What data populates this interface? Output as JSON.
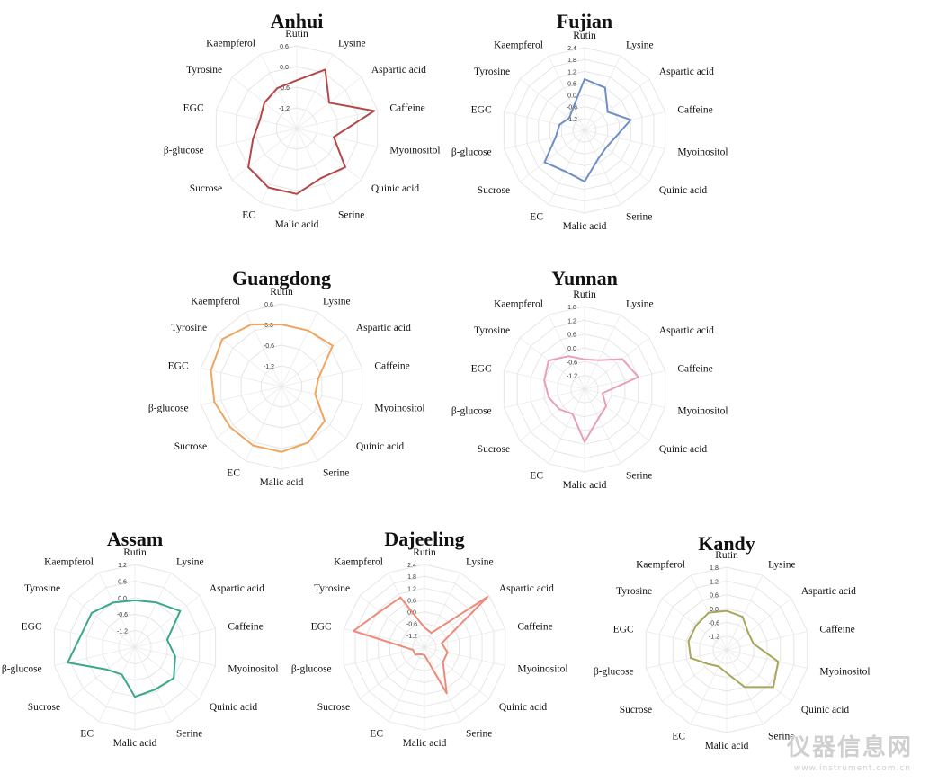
{
  "figure": {
    "watermark": {
      "text": "仪器信息网",
      "url": "www.instrument.com.cn"
    }
  },
  "chart_data": [
    {
      "type": "radar",
      "title": "Anhui",
      "axes": [
        "Rutin",
        "Lysine",
        "Aspartic acid",
        "Caffeine",
        "Myoinositol",
        "Quinic acid",
        "Serine",
        "Malic acid",
        "EC",
        "Sucrose",
        "β-glucose",
        "EGC",
        "Tyrosine",
        "Kaempferol"
      ],
      "tick_labels": [
        "0.6",
        "0.0",
        "-0.6",
        "-1.2"
      ],
      "tick_values": [
        0.6,
        0.0,
        -0.6,
        -1.2
      ],
      "rmin": -1.8,
      "rmax": 0.6,
      "color": "#b5474a",
      "series": [
        {
          "values": [
            -0.4,
            0.1,
            -0.6,
            0.5,
            -0.7,
            0.0,
            -0.2,
            0.1,
            0.1,
            0.0,
            -0.5,
            -0.7,
            -0.6,
            -0.5
          ]
        }
      ]
    },
    {
      "type": "radar",
      "title": "Fujian",
      "axes": [
        "Rutin",
        "Lysine",
        "Aspartic acid",
        "Caffeine",
        "Myoinositol",
        "Quinic acid",
        "Serine",
        "Malic acid",
        "EC",
        "Sucrose",
        "β-glucose",
        "EGC",
        "Tyrosine",
        "Kaempferol"
      ],
      "tick_labels": [
        "2.4",
        "1.8",
        "1.2",
        "0.6",
        "0.0",
        "-0.6",
        "-1.2"
      ],
      "tick_values": [
        2.4,
        1.8,
        1.2,
        0.6,
        0.0,
        -0.6,
        -1.2
      ],
      "rmin": -1.8,
      "rmax": 2.4,
      "color": "#6e8fc5",
      "series": [
        {
          "values": [
            0.8,
            0.6,
            -0.3,
            0.6,
            -0.2,
            -0.4,
            -0.2,
            0.8,
            0.5,
            0.8,
            -0.3,
            -0.5,
            -0.8,
            -0.5
          ]
        }
      ]
    },
    {
      "type": "radar",
      "title": "Guangdong",
      "axes": [
        "Rutin",
        "Lysine",
        "Aspartic acid",
        "Caffeine",
        "Myoinositol",
        "Quinic acid",
        "Serine",
        "Malic acid",
        "EC",
        "Sucrose",
        "β-glucose",
        "EGC",
        "Tyrosine",
        "Kaempferol"
      ],
      "tick_labels": [
        "0.6",
        "0.0",
        "-0.6",
        "-1.2"
      ],
      "tick_values": [
        0.6,
        0.0,
        -0.6,
        -1.2
      ],
      "rmin": -1.8,
      "rmax": 0.6,
      "color": "#f0a55e",
      "series": [
        {
          "values": [
            0.0,
            0.0,
            0.1,
            -0.7,
            -0.8,
            -0.2,
            0.0,
            0.1,
            0.1,
            0.1,
            0.2,
            0.3,
            0.4,
            0.2
          ]
        }
      ]
    },
    {
      "type": "radar",
      "title": "Yunnan",
      "axes": [
        "Rutin",
        "Lysine",
        "Aspartic acid",
        "Caffeine",
        "Myoinositol",
        "Quinic acid",
        "Serine",
        "Malic acid",
        "EC",
        "Sucrose",
        "β-glucose",
        "EGC",
        "Tyrosine",
        "Kaempferol"
      ],
      "tick_labels": [
        "1.8",
        "1.2",
        "0.6",
        "0.0",
        "-0.6",
        "-1.2"
      ],
      "tick_values": [
        1.8,
        1.2,
        0.6,
        0.0,
        -0.6,
        -1.2
      ],
      "rmin": -1.8,
      "rmax": 1.8,
      "color": "#e7a0b6",
      "series": [
        {
          "values": [
            -0.5,
            -0.4,
            0.3,
            0.6,
            -1.0,
            -0.6,
            -0.4,
            0.5,
            -0.6,
            -0.4,
            -0.2,
            0.0,
            0.2,
            -0.2
          ]
        }
      ]
    },
    {
      "type": "radar",
      "title": "Assam",
      "axes": [
        "Rutin",
        "Lysine",
        "Aspartic acid",
        "Caffeine",
        "Myoinositol",
        "Quinic acid",
        "Serine",
        "Malic acid",
        "EC",
        "Sucrose",
        "β-glucose",
        "EGC",
        "Tyrosine",
        "Kaempferol"
      ],
      "tick_labels": [
        "1.2",
        "0.6",
        "0.0",
        "-0.6",
        "-1.2"
      ],
      "tick_values": [
        1.2,
        0.6,
        0.0,
        -0.6,
        -1.2
      ],
      "rmin": -1.8,
      "rmax": 1.2,
      "color": "#3aa88d",
      "series": [
        {
          "values": [
            -0.1,
            0.0,
            0.3,
            -0.6,
            -0.3,
            0.0,
            -0.1,
            0.0,
            -0.7,
            -0.5,
            0.7,
            0.2,
            0.2,
            0.0
          ]
        }
      ]
    },
    {
      "type": "radar",
      "title": "Dajeeling",
      "axes": [
        "Rutin",
        "Lysine",
        "Aspartic acid",
        "Caffeine",
        "Myoinositol",
        "Quinic acid",
        "Serine",
        "Malic acid",
        "EC",
        "Sucrose",
        "β-glucose",
        "EGC",
        "Tyrosine",
        "Kaempferol"
      ],
      "tick_labels": [
        "2.4",
        "1.8",
        "1.2",
        "0.6",
        "0.0",
        "-0.6",
        "-1.2"
      ],
      "tick_values": [
        2.4,
        1.8,
        1.2,
        0.6,
        0.0,
        -0.6,
        -1.2
      ],
      "rmin": -1.8,
      "rmax": 2.4,
      "color": "#ee8a7a",
      "series": [
        {
          "values": [
            -0.8,
            -1.0,
            2.3,
            -0.9,
            -0.6,
            -0.6,
            0.8,
            -1.4,
            -1.4,
            -1.2,
            -1.2,
            1.9,
            1.1,
            1.0
          ]
        }
      ]
    },
    {
      "type": "radar",
      "title": "Kandy",
      "axes": [
        "Rutin",
        "Lysine",
        "Aspartic acid",
        "Caffeine",
        "Myoinositol",
        "Quinic acid",
        "Serine",
        "Malic acid",
        "EC",
        "Sucrose",
        "β-glucose",
        "EGC",
        "Tyrosine",
        "Kaempferol"
      ],
      "tick_labels": [
        "1.8",
        "1.2",
        "0.6",
        "0.0",
        "-0.6",
        "-1.2"
      ],
      "tick_values": [
        1.8,
        1.2,
        0.6,
        0.0,
        -0.6,
        -1.2
      ],
      "rmin": -1.8,
      "rmax": 1.8,
      "color": "#a9a65b",
      "series": [
        {
          "values": [
            -0.1,
            -0.2,
            -0.6,
            -0.6,
            0.5,
            0.8,
            0.0,
            -0.8,
            -1.0,
            -0.8,
            -0.2,
            -0.1,
            -0.1,
            0.0
          ]
        }
      ]
    }
  ]
}
